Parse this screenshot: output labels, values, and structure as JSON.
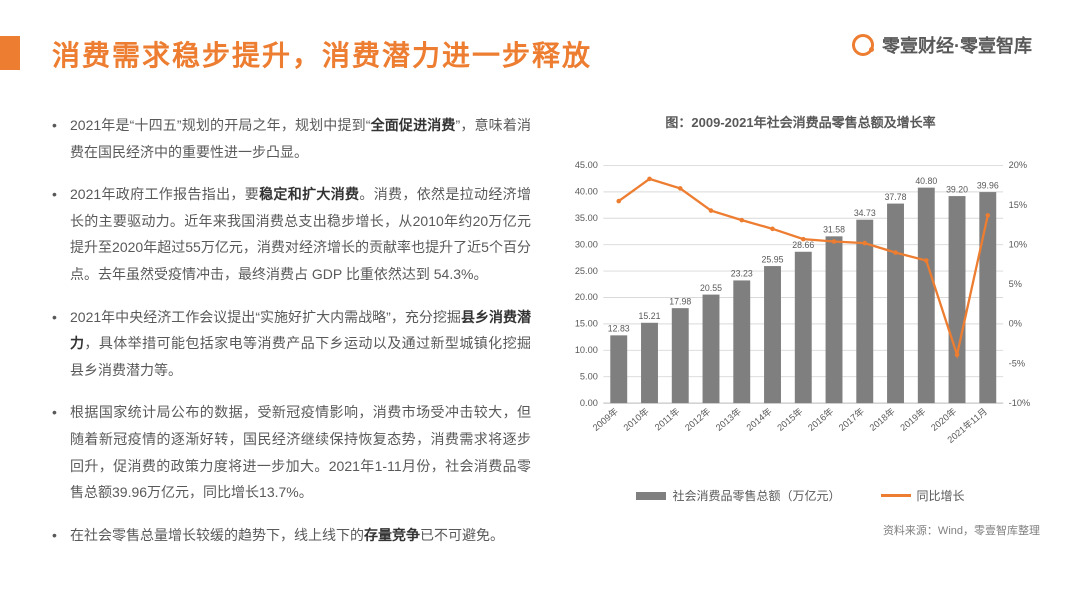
{
  "header": {
    "title": "消费需求稳步提升，消费潜力进一步释放",
    "brand": "零壹财经·零壹智库",
    "title_color": "#ed7d31",
    "accent_color": "#ed7d31"
  },
  "bullets": [
    {
      "pre": "2021年是“十四五”规划的开局之年，规划中提到“",
      "bold": "全面促进消费",
      "post": "”，意味着消费在国民经济中的重要性进一步凸显。"
    },
    {
      "pre": "2021年政府工作报告指出，要",
      "bold": "稳定和扩大消费",
      "post": "。消费，依然是拉动经济增长的主要驱动力。近年来我国消费总支出稳步增长，从2010年约20万亿元提升至2020年超过55万亿元，消费对经济增长的贡献率也提升了近5个百分点。去年虽然受疫情冲击，最终消费占 GDP 比重依然达到 54.3%。"
    },
    {
      "pre": "2021年中央经济工作会议提出“实施好扩大内需战略”，充分挖掘",
      "bold": "县乡消费潜力",
      "post": "，具体举措可能包括家电等消费产品下乡运动以及通过新型城镇化挖掘县乡消费潜力等。"
    },
    {
      "pre": "根据国家统计局公布的数据，受新冠疫情影响，消费市场受冲击较大，但随着新冠疫情的逐渐好转，国民经济继续保持恢复态势，消费需求将逐步回升，促消费的政策力度将进一步加大。2021年1-11月份，社会消费品零售总额39.96万亿元，同比增长13.7%。",
      "bold": "",
      "post": ""
    },
    {
      "pre": "在社会零售总量增长较缓的趋势下，线上线下的",
      "bold": "存量竞争",
      "post": "已不可避免。"
    }
  ],
  "chart": {
    "title": "图：2009-2021年社会消费品零售总额及增长率",
    "type": "bar+line",
    "categories": [
      "2009年",
      "2010年",
      "2011年",
      "2012年",
      "2013年",
      "2014年",
      "2015年",
      "2016年",
      "2017年",
      "2018年",
      "2019年",
      "2020年",
      "2021年11月"
    ],
    "bar_values": [
      12.83,
      15.21,
      17.98,
      20.55,
      23.23,
      25.95,
      28.66,
      31.58,
      34.73,
      37.78,
      40.8,
      39.2,
      39.96
    ],
    "line_values": [
      15.5,
      18.3,
      17.1,
      14.3,
      13.1,
      12.0,
      10.7,
      10.4,
      10.2,
      9.0,
      8.0,
      -3.9,
      13.7
    ],
    "y_left": {
      "min": 0,
      "max": 45,
      "step": 5,
      "label_fmt": "fixed2"
    },
    "y_right": {
      "min": -10,
      "max": 20,
      "step": 5,
      "suffix": "%"
    },
    "show_bar_labels": true,
    "bar_color": "#7f7f7f",
    "line_color": "#ed7d31",
    "grid_color": "#d9d9d9",
    "axis_color": "#bfbfbf",
    "label_color": "#595959",
    "background_color": "#ffffff",
    "bar_label_fontsize": 9.5,
    "axis_fontsize": 10,
    "title_fontsize": 13,
    "bar_width_ratio": 0.55,
    "line_width": 2.5
  },
  "legend": {
    "bar": "社会消费品零售总额（万亿元）",
    "line": "同比增长"
  },
  "source": "资料来源：Wind，零壹智库整理"
}
